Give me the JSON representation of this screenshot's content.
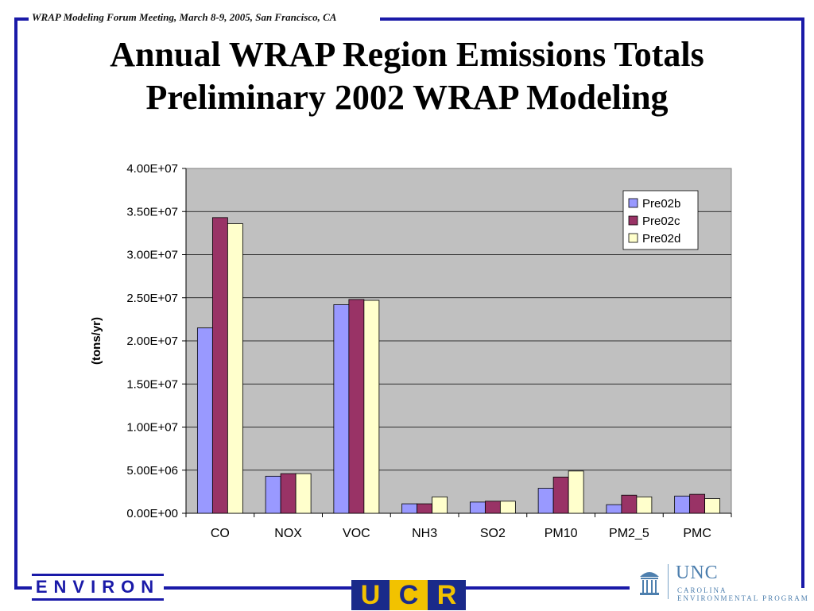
{
  "header": {
    "meeting_note": "WRAP Modeling Forum Meeting, March 8-9, 2005, San Francisco, CA"
  },
  "slide": {
    "title_line1": "Annual WRAP Region Emissions Totals",
    "title_line2": "Preliminary 2002 WRAP Modeling"
  },
  "logos": {
    "environ": "ENVIRON",
    "ucr": [
      "U",
      "C",
      "R"
    ],
    "unc_name": "UNC",
    "unc_sub1": "CAROLINA",
    "unc_sub2": "ENVIRONMENTAL PROGRAM"
  },
  "colors": {
    "frame": "#1a1aa8",
    "plot_bg": "#c0c0c0"
  },
  "chart_data": {
    "type": "bar",
    "title": "",
    "xlabel": "",
    "ylabel": "(tons/yr)",
    "ylim": [
      0,
      40000000
    ],
    "y_ticks": [
      0,
      5000000,
      10000000,
      15000000,
      20000000,
      25000000,
      30000000,
      35000000,
      40000000
    ],
    "y_tick_labels": [
      "0.00E+00",
      "5.00E+06",
      "1.00E+07",
      "1.50E+07",
      "2.00E+07",
      "2.50E+07",
      "3.00E+07",
      "3.50E+07",
      "4.00E+07"
    ],
    "grid": true,
    "legend_position": "top-right",
    "categories": [
      "CO",
      "NOX",
      "VOC",
      "NH3",
      "SO2",
      "PM10",
      "PM2_5",
      "PMC"
    ],
    "series": [
      {
        "name": "Pre02b",
        "color": "#9999ff",
        "values": [
          21500000,
          4300000,
          24200000,
          1100000,
          1300000,
          2900000,
          1000000,
          2000000
        ]
      },
      {
        "name": "Pre02c",
        "color": "#993366",
        "values": [
          34300000,
          4600000,
          24800000,
          1100000,
          1400000,
          4200000,
          2100000,
          2200000
        ]
      },
      {
        "name": "Pre02d",
        "color": "#ffffcc",
        "values": [
          33600000,
          4600000,
          24700000,
          1900000,
          1400000,
          4900000,
          1900000,
          1700000
        ]
      }
    ]
  }
}
